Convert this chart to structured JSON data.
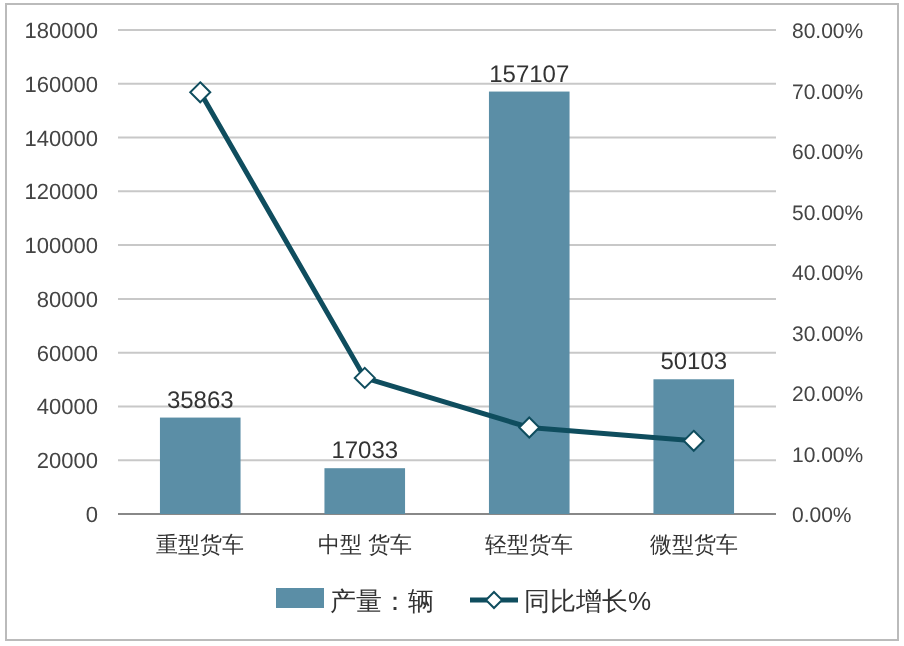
{
  "chart_data": {
    "type": "bar",
    "categories": [
      "重型货车",
      "中型 货车",
      "轻型货车",
      "微型货车"
    ],
    "series": [
      {
        "name": "产量：辆",
        "color": "#5b8ea6",
        "values": [
          35863,
          17033,
          157107,
          50103
        ],
        "data_labels": true
      },
      {
        "name": "同比增长%",
        "type": "line",
        "axis": "y2",
        "color": "#0f4d5e",
        "marker": "diamond",
        "values": [
          69.7,
          22.5,
          14.3,
          12.1
        ]
      }
    ],
    "ylim": [
      0,
      180000
    ],
    "yticks": [
      0,
      20000,
      40000,
      60000,
      80000,
      100000,
      120000,
      140000,
      160000,
      180000
    ],
    "y2lim": [
      0,
      80
    ],
    "y2ticks": [
      {
        "value": 0,
        "label": "0.00%"
      },
      {
        "value": 10,
        "label": "10.00%"
      },
      {
        "value": 20,
        "label": "20.00%"
      },
      {
        "value": 30,
        "label": "30.00%"
      },
      {
        "value": 40,
        "label": "40.00%"
      },
      {
        "value": 50,
        "label": "50.00%"
      },
      {
        "value": 60,
        "label": "60.00%"
      },
      {
        "value": 70,
        "label": "70.00%"
      },
      {
        "value": 80,
        "label": "80.00%"
      }
    ],
    "grid": "y",
    "legend": "bottom"
  }
}
